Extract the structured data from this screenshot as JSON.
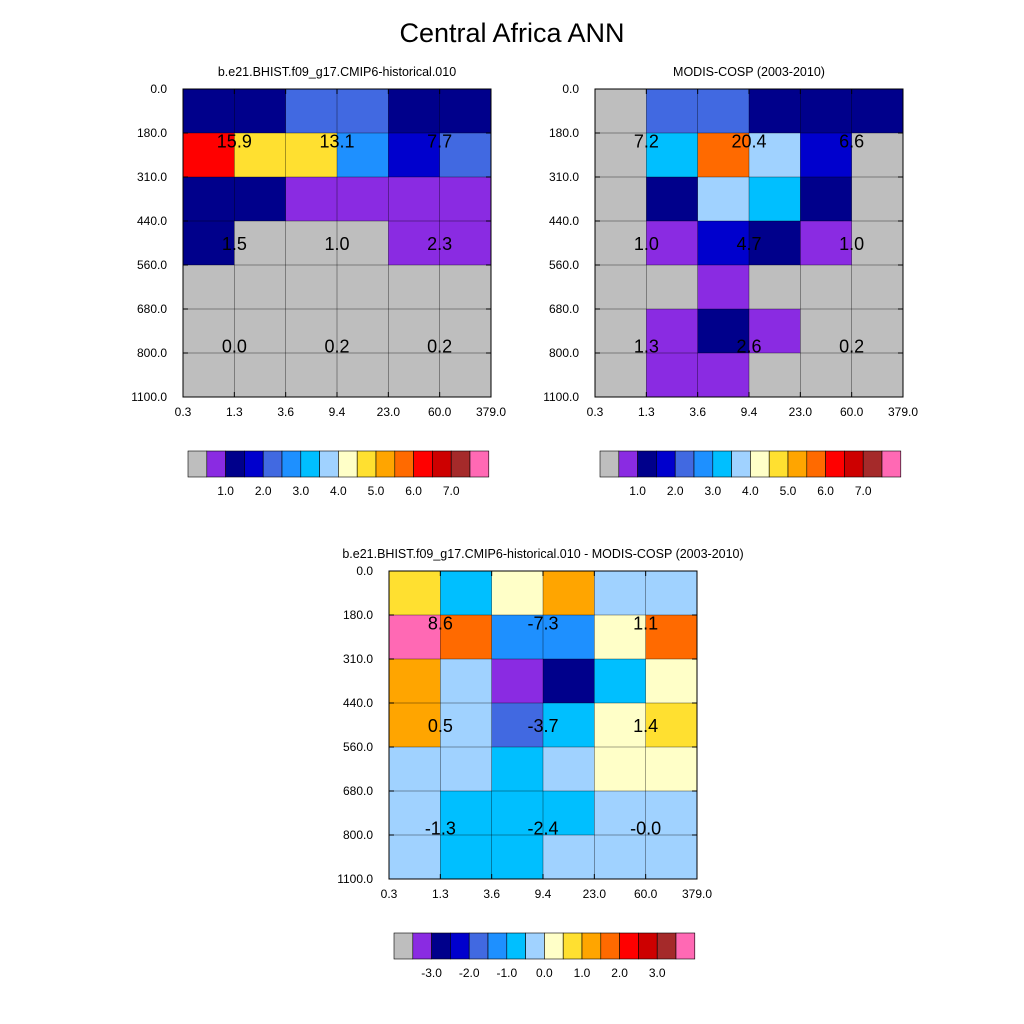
{
  "figure": {
    "title": "Central Africa ANN"
  },
  "axes": {
    "x_ticks": [
      "0.3",
      "1.3",
      "3.6",
      "9.4",
      "23.0",
      "60.0",
      "379.0"
    ],
    "y_ticks": [
      "0.0",
      "180.0",
      "310.0",
      "440.0",
      "560.0",
      "680.0",
      "800.0",
      "1100.0"
    ]
  },
  "colors": {
    "abs_palette": [
      "#bebebe",
      "#8a2be2",
      "#00008b",
      "#0000cd",
      "#4169e1",
      "#1e90ff",
      "#00bfff",
      "#a0d2ff",
      "#ffffc8",
      "#ffe030",
      "#ffa500",
      "#ff6a00",
      "#ff0000",
      "#cd0000",
      "#a52a2a",
      "#ff69b4"
    ],
    "diff_palette": [
      "#bebebe",
      "#8a2be2",
      "#00008b",
      "#0000cd",
      "#4169e1",
      "#1e90ff",
      "#00bfff",
      "#a0d2ff",
      "#ffffc8",
      "#ffe030",
      "#ffa500",
      "#ff6a00",
      "#ff0000",
      "#cd0000",
      "#a52a2a",
      "#ff69b4"
    ]
  },
  "chart_data": [
    {
      "type": "heatmap",
      "title": "b.e21.BHIST.f09_g17.CMIP6-historical.010",
      "x_ticks": [
        "0.3",
        "1.3",
        "3.6",
        "9.4",
        "23.0",
        "60.0",
        "379.0"
      ],
      "y_ticks": [
        "0.0",
        "180.0",
        "310.0",
        "440.0",
        "560.0",
        "680.0",
        "800.0",
        "1100.0"
      ],
      "cell_color_index": [
        [
          2,
          2,
          4,
          4,
          2,
          2
        ],
        [
          12,
          9,
          9,
          5,
          3,
          4
        ],
        [
          2,
          2,
          1,
          1,
          1,
          1
        ],
        [
          2,
          0,
          0,
          0,
          1,
          1
        ],
        [
          0,
          0,
          0,
          0,
          0,
          0
        ],
        [
          0,
          0,
          0,
          0,
          0,
          0
        ],
        [
          0,
          0,
          0,
          0,
          0,
          0
        ]
      ],
      "group_values": [
        [
          "15.9",
          "13.1",
          "7.7"
        ],
        [
          "1.5",
          "1.0",
          "2.3"
        ],
        [
          "0.0",
          "0.2",
          "0.2"
        ]
      ],
      "colorbar_labels": [
        "1.0",
        "2.0",
        "3.0",
        "4.0",
        "5.0",
        "6.0",
        "7.0"
      ]
    },
    {
      "type": "heatmap",
      "title": "MODIS-COSP (2003-2010)",
      "x_ticks": [
        "0.3",
        "1.3",
        "3.6",
        "9.4",
        "23.0",
        "60.0",
        "379.0"
      ],
      "y_ticks": [
        "0.0",
        "180.0",
        "310.0",
        "440.0",
        "560.0",
        "680.0",
        "800.0",
        "1100.0"
      ],
      "cell_color_index": [
        [
          0,
          4,
          4,
          2,
          2,
          2
        ],
        [
          0,
          6,
          11,
          7,
          3,
          0
        ],
        [
          0,
          2,
          7,
          6,
          2,
          0
        ],
        [
          0,
          1,
          3,
          2,
          1,
          0
        ],
        [
          0,
          0,
          1,
          0,
          0,
          0
        ],
        [
          0,
          1,
          2,
          1,
          0,
          0
        ],
        [
          0,
          1,
          1,
          0,
          0,
          0
        ]
      ],
      "group_values": [
        [
          "7.2",
          "20.4",
          "6.6"
        ],
        [
          "1.0",
          "4.7",
          "1.0"
        ],
        [
          "1.3",
          "2.6",
          "0.2"
        ]
      ],
      "colorbar_labels": [
        "1.0",
        "2.0",
        "3.0",
        "4.0",
        "5.0",
        "6.0",
        "7.0"
      ]
    },
    {
      "type": "heatmap",
      "title": "b.e21.BHIST.f09_g17.CMIP6-historical.010 - MODIS-COSP (2003-2010)",
      "x_ticks": [
        "0.3",
        "1.3",
        "3.6",
        "9.4",
        "23.0",
        "60.0",
        "379.0"
      ],
      "y_ticks": [
        "0.0",
        "180.0",
        "310.0",
        "440.0",
        "560.0",
        "680.0",
        "800.0",
        "1100.0"
      ],
      "cell_color_index": [
        [
          9,
          6,
          8,
          10,
          7,
          7
        ],
        [
          15,
          11,
          5,
          5,
          8,
          11
        ],
        [
          10,
          7,
          1,
          2,
          6,
          8
        ],
        [
          10,
          7,
          4,
          6,
          8,
          9
        ],
        [
          7,
          7,
          6,
          7,
          8,
          8
        ],
        [
          7,
          6,
          6,
          6,
          7,
          7
        ],
        [
          7,
          6,
          6,
          7,
          7,
          7
        ]
      ],
      "group_values": [
        [
          "8.6",
          "-7.3",
          "1.1"
        ],
        [
          "0.5",
          "-3.7",
          "1.4"
        ],
        [
          "-1.3",
          "-2.4",
          "-0.0"
        ]
      ],
      "colorbar_labels": [
        "-3.0",
        "-2.0",
        "-1.0",
        "0.0",
        "1.0",
        "2.0",
        "3.0"
      ]
    }
  ]
}
